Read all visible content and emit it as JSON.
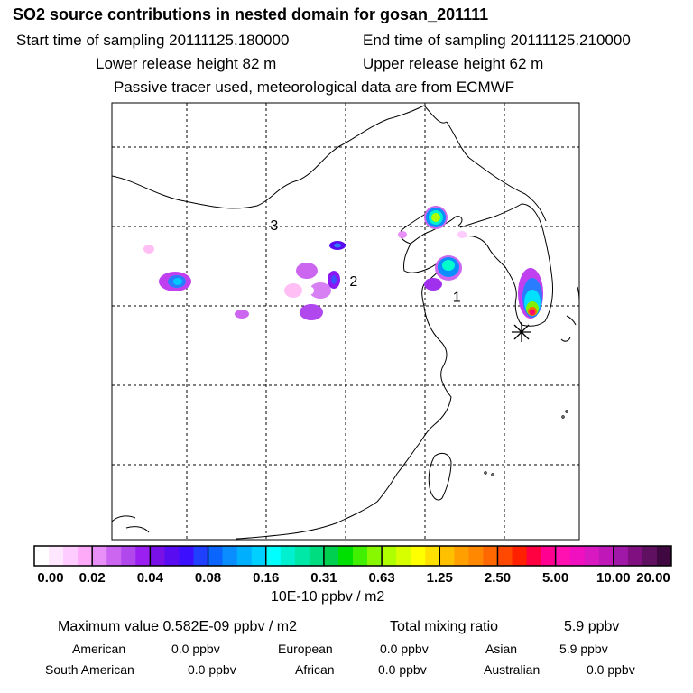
{
  "header": {
    "title": "SO2 source contributions in nested domain for gosan_201111",
    "start_time": "Start time of sampling 20111125.180000",
    "end_time": "End time of sampling 20111125.210000",
    "lower_release": "Lower release height   82 m",
    "upper_release": "Upper release height   62 m",
    "tracer_note": "Passive tracer used, meteorological data are from ECMWF"
  },
  "map": {
    "markers": [
      {
        "label": "1",
        "lon": 127.0,
        "lat": 35.5
      },
      {
        "label": "2",
        "lon": 120.5,
        "lat": 36.5
      },
      {
        "label": "3",
        "lon": 115.5,
        "lat": 40.0
      }
    ],
    "receptor_name": "gosan",
    "grid_color": "#000000",
    "land_outline_color": "#000000"
  },
  "colorbar": {
    "tick_labels": [
      "0.00",
      "0.02",
      "0.04",
      "0.08",
      "0.16",
      "0.31",
      "0.63",
      "1.25",
      "2.50",
      "5.00",
      "10.00",
      "20.00"
    ],
    "colors": [
      "#ffffff",
      "#ffe8ff",
      "#ffccff",
      "#ffaaf8",
      "#e890f8",
      "#cc66f0",
      "#b048ee",
      "#9a1ff0",
      "#7a10e8",
      "#5a0cf0",
      "#3c10ff",
      "#2040ff",
      "#0a66ff",
      "#0a8eff",
      "#00b0ff",
      "#00d0ff",
      "#00ffff",
      "#00f0d0",
      "#00e8a8",
      "#00dc80",
      "#00d050",
      "#00e000",
      "#40f000",
      "#88f800",
      "#b0ff00",
      "#d8ff00",
      "#ffff00",
      "#ffe000",
      "#ffc000",
      "#ffa000",
      "#ff8800",
      "#ff6800",
      "#ff4800",
      "#ff2000",
      "#ff0040",
      "#ff0090",
      "#ff10b0",
      "#f010c0",
      "#d818c0",
      "#c018b8",
      "#a018a8",
      "#801080",
      "#601060",
      "#400840"
    ],
    "unit": "10E-10 ppbv / m2"
  },
  "stats": {
    "maximum": "Maximum value  0.582E-09 ppbv / m2",
    "total_mixing": "Total mixing ratio",
    "total_value": "5.9 ppbv",
    "regions": [
      {
        "name": "American",
        "value": "0.0 ppbv"
      },
      {
        "name": "European",
        "value": "0.0 ppbv"
      },
      {
        "name": "Asian",
        "value": "5.9 ppbv"
      },
      {
        "name": "South American",
        "value": "0.0 ppbv"
      },
      {
        "name": "African",
        "value": "0.0 ppbv"
      },
      {
        "name": "Australian",
        "value": "0.0 ppbv"
      }
    ]
  }
}
